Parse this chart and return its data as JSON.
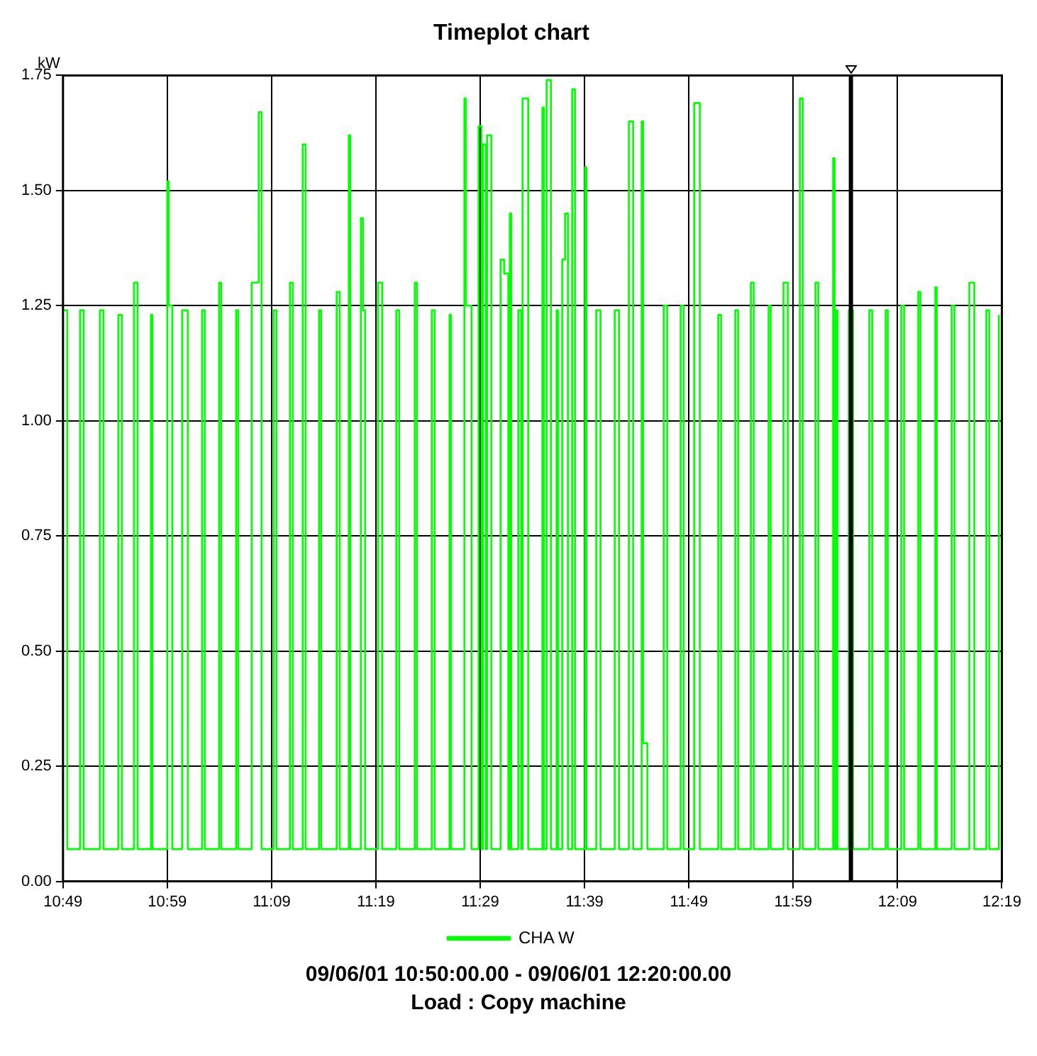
{
  "chart_data": {
    "type": "step",
    "title": "Timeplot chart",
    "ylabel": "kW",
    "annotations": [
      "09/06/01 10:50:00.00 - 09/06/01 12:20:00.00",
      "Load : Copy machine"
    ],
    "xlim": [
      10.8167,
      12.3167
    ],
    "xticks": [
      {
        "value": 10.8167,
        "label": "10:49"
      },
      {
        "value": 10.9833,
        "label": "10:59"
      },
      {
        "value": 11.15,
        "label": "11:09"
      },
      {
        "value": 11.3167,
        "label": "11:19"
      },
      {
        "value": 11.4833,
        "label": "11:29"
      },
      {
        "value": 11.65,
        "label": "11:39"
      },
      {
        "value": 11.8167,
        "label": "11:49"
      },
      {
        "value": 11.9833,
        "label": "11:59"
      },
      {
        "value": 12.15,
        "label": "12:09"
      },
      {
        "value": 12.3167,
        "label": "12:19"
      }
    ],
    "ylim": [
      0,
      1.75
    ],
    "yticks": [
      {
        "value": 0,
        "label": "0.00"
      },
      {
        "value": 0.25,
        "label": "0.25"
      },
      {
        "value": 0.5,
        "label": "0.50"
      },
      {
        "value": 0.75,
        "label": "0.75"
      },
      {
        "value": 1,
        "label": "1.00"
      },
      {
        "value": 1.25,
        "label": "1.25"
      },
      {
        "value": 1.5,
        "label": "1.50"
      },
      {
        "value": 1.75,
        "label": "1.75"
      }
    ],
    "grid": true,
    "legend": "bottom",
    "line_style": "solid",
    "marker": "none",
    "ref_lines": [
      {
        "axis": "x",
        "value": 12.0755,
        "color": "#000000"
      }
    ],
    "series": [
      {
        "name": "CHA W",
        "color": "#00ff00",
        "x": [
          10.8167,
          10.8235,
          10.8439,
          10.8496,
          10.8756,
          10.8813,
          10.9051,
          10.9107,
          10.93,
          10.9357,
          10.9572,
          10.9595,
          10.9833,
          10.9855,
          10.9912,
          11.007,
          11.0161,
          11.0388,
          11.0433,
          11.066,
          11.0694,
          11.0932,
          11.0966,
          11.1181,
          11.1294,
          11.1339,
          11.1532,
          11.1577,
          11.1793,
          11.1838,
          11.1997,
          11.2042,
          11.2257,
          11.2291,
          11.254,
          11.2586,
          11.2733,
          11.2756,
          11.2926,
          11.296,
          11.2994,
          11.3198,
          11.3266,
          11.3492,
          11.3537,
          11.3787,
          11.3821,
          11.4059,
          11.4104,
          11.4342,
          11.4365,
          11.458,
          11.4602,
          11.4693,
          11.4806,
          11.4852,
          11.4874,
          11.492,
          11.4942,
          11.501,
          11.5158,
          11.5214,
          11.5282,
          11.5305,
          11.5328,
          11.5441,
          11.5486,
          11.5509,
          11.5599,
          11.5826,
          11.5849,
          11.5894,
          11.5962,
          11.6053,
          11.6075,
          11.6143,
          11.6189,
          11.6234,
          11.6302,
          11.6347,
          11.6506,
          11.6529,
          11.6687,
          11.6755,
          11.6982,
          11.705,
          11.7208,
          11.7276,
          11.7412,
          11.7435,
          11.7503,
          11.7764,
          11.782,
          11.8035,
          11.8081,
          11.8251,
          11.8341,
          11.8636,
          11.8681,
          11.8908,
          11.8953,
          11.9157,
          11.9202,
          11.944,
          11.9474,
          11.9678,
          11.9746,
          11.9939,
          11.9984,
          12.0188,
          12.0234,
          12.0471,
          12.0494,
          12.0517,
          12.0539,
          12.0721,
          12.0789,
          12.1049,
          12.1095,
          12.131,
          12.1344,
          12.1559,
          12.1604,
          12.1831,
          12.1865,
          12.2103,
          12.2126,
          12.2364,
          12.2409,
          12.2647,
          12.2726,
          12.2919,
          12.2965,
          12.312
        ],
        "values": [
          1.24,
          0.07,
          1.24,
          0.07,
          1.24,
          0.07,
          1.23,
          0.07,
          1.3,
          0.07,
          1.23,
          0.07,
          1.52,
          1.25,
          0.07,
          1.24,
          0.07,
          1.24,
          0.07,
          1.3,
          0.07,
          1.24,
          0.07,
          1.3,
          1.67,
          0.07,
          1.24,
          0.07,
          1.3,
          0.07,
          1.6,
          0.07,
          1.24,
          0.07,
          1.28,
          0.07,
          1.62,
          0.07,
          1.44,
          1.24,
          0.07,
          1.3,
          0.07,
          1.24,
          0.07,
          1.3,
          0.07,
          1.24,
          0.07,
          1.23,
          0.07,
          1.7,
          1.25,
          0.07,
          1.64,
          0.07,
          1.6,
          0.07,
          1.62,
          0.07,
          1.35,
          1.32,
          0.07,
          1.45,
          0.07,
          1.24,
          0.07,
          1.7,
          0.07,
          1.68,
          0.07,
          1.74,
          0.07,
          1.24,
          0.07,
          1.35,
          1.45,
          0.07,
          1.72,
          0.07,
          1.55,
          0.07,
          1.24,
          0.07,
          1.24,
          0.07,
          1.65,
          0.07,
          1.65,
          0.3,
          0.07,
          1.25,
          0.07,
          1.25,
          0.07,
          1.69,
          0.07,
          1.23,
          0.07,
          1.24,
          0.07,
          1.3,
          0.07,
          1.25,
          0.07,
          1.3,
          0.07,
          1.7,
          0.07,
          1.3,
          0.07,
          1.57,
          0.07,
          1.24,
          0.07,
          1.24,
          0.07,
          1.24,
          0.07,
          1.24,
          0.07,
          1.25,
          0.07,
          1.28,
          0.07,
          1.29,
          0.07,
          1.25,
          0.07,
          1.3,
          0.07,
          1.24,
          0.07,
          1.23
        ]
      }
    ]
  }
}
